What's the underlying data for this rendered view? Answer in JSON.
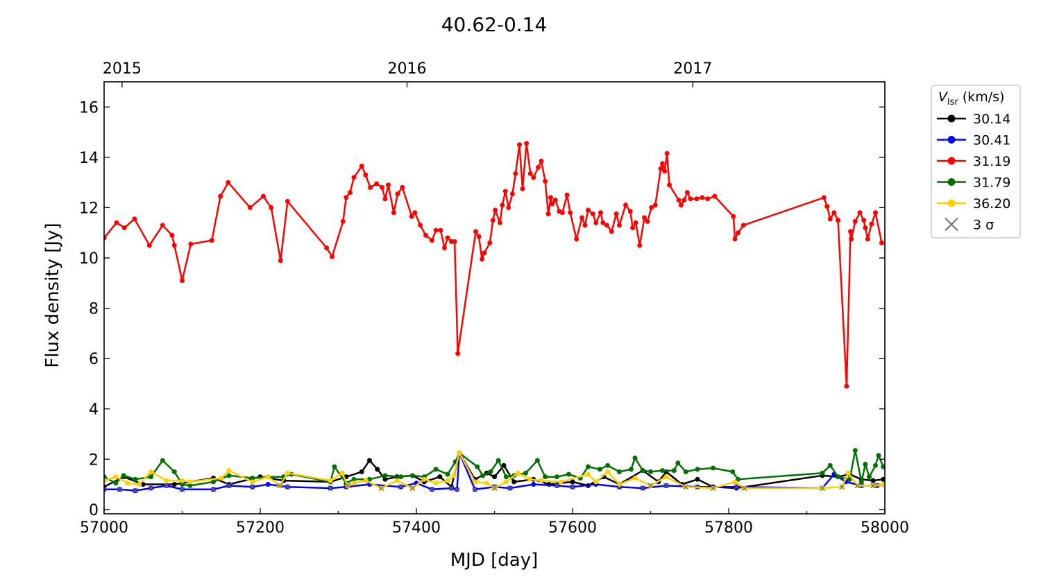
{
  "chart_data": {
    "type": "line",
    "title": "40.62-0.14",
    "xlabel": "MJD [day]",
    "ylabel": "Flux density [Jy]",
    "xlim": [
      57000,
      58000
    ],
    "ylim": [
      -0.17,
      17.0
    ],
    "xticks": [
      57000,
      57200,
      57400,
      57600,
      57800,
      58000
    ],
    "yticks": [
      0,
      2,
      4,
      6,
      8,
      10,
      12,
      14,
      16
    ],
    "top_axis": {
      "ticks": [
        {
          "label": "2015",
          "mjd": 57023
        },
        {
          "label": "2016",
          "mjd": 57388
        },
        {
          "label": "2017",
          "mjd": 57754
        }
      ]
    },
    "grid": false,
    "legend": {
      "placement": "outside-right",
      "title_main": "V",
      "title_sub": "lsr",
      "title_unit": " (km/s)",
      "sigma_label": "3 σ"
    },
    "sigma_color": "#707070",
    "series": [
      {
        "name": "30.14",
        "color": "#000000",
        "x": [
          57000,
          57025,
          57050,
          57090,
          57140,
          57160,
          57200,
          57230,
          57290,
          57310,
          57330,
          57340,
          57350,
          57360,
          57375,
          57395,
          57410,
          57430,
          57445,
          57455,
          57475,
          57490,
          57500,
          57512,
          57525,
          57550,
          57570,
          57600,
          57620,
          57640,
          57660,
          57690,
          57710,
          57720,
          57740,
          57760,
          57780,
          57810,
          57920,
          57940,
          57955,
          57970,
          57985,
          57998
        ],
        "y": [
          0.9,
          1.3,
          1.0,
          1.0,
          1.25,
          1.0,
          1.3,
          1.15,
          1.1,
          1.3,
          1.5,
          1.95,
          1.6,
          1.2,
          1.3,
          1.35,
          1.1,
          1.3,
          0.9,
          2.25,
          1.2,
          1.45,
          1.3,
          1.75,
          1.1,
          1.2,
          1.0,
          1.1,
          0.95,
          1.3,
          1.0,
          1.55,
          1.1,
          1.5,
          1.0,
          1.2,
          0.9,
          0.85,
          1.35,
          1.3,
          1.4,
          1.2,
          1.15,
          1.2
        ]
      },
      {
        "name": "30.41",
        "color": "#0000ff",
        "x": [
          57000,
          57020,
          57040,
          57060,
          57080,
          57100,
          57140,
          57160,
          57190,
          57210,
          57235,
          57290,
          57310,
          57340,
          57380,
          57400,
          57420,
          57445,
          57452,
          57455,
          57475,
          57500,
          57520,
          57550,
          57580,
          57600,
          57630,
          57660,
          57690,
          57720,
          57760,
          57810,
          57920,
          57935,
          57950,
          57970,
          57990,
          57998
        ],
        "y": [
          0.8,
          0.8,
          0.75,
          0.85,
          0.95,
          0.8,
          0.8,
          0.95,
          0.9,
          1.0,
          0.9,
          0.85,
          0.9,
          1.0,
          0.9,
          1.05,
          0.8,
          0.85,
          0.8,
          2.25,
          0.8,
          0.9,
          0.85,
          1.0,
          0.95,
          0.9,
          1.0,
          0.9,
          0.85,
          0.95,
          0.9,
          0.9,
          0.85,
          1.4,
          1.1,
          0.95,
          0.95,
          1.0
        ]
      },
      {
        "name": "31.19",
        "color": "#ff0000",
        "x": [
          57000,
          57016,
          57026,
          57039,
          57058,
          57075,
          57087,
          57090,
          57100,
          57111,
          57138,
          57149,
          57159,
          57187,
          57204,
          57214,
          57226,
          57235,
          57285,
          57292,
          57306,
          57310,
          57315,
          57320,
          57330,
          57335,
          57341,
          57349,
          57356,
          57360,
          57364,
          57371,
          57376,
          57382,
          57394,
          57398,
          57405,
          57412,
          57420,
          57425,
          57431,
          57436,
          57440,
          57445,
          57449,
          57453,
          57476,
          57480,
          57484,
          57487,
          57494,
          57498,
          57501,
          57507,
          57510,
          57514,
          57518,
          57523,
          57527,
          57532,
          57536,
          57541,
          57546,
          57550,
          57556,
          57560,
          57565,
          57569,
          57572,
          57574,
          57578,
          57583,
          57587,
          57593,
          57597,
          57605,
          57612,
          57616,
          57620,
          57626,
          57630,
          57636,
          57639,
          57644,
          57650,
          57656,
          57660,
          57668,
          57674,
          57677,
          57681,
          57686,
          57692,
          57696,
          57701,
          57706,
          57713,
          57715,
          57718,
          57721,
          57724,
          57736,
          57739,
          57743,
          57747,
          57751,
          57759,
          57766,
          57773,
          57782,
          57806,
          57808,
          57812,
          57819,
          57922,
          57926,
          57930,
          57935,
          57940,
          57951,
          57956,
          57957,
          57962,
          57968,
          57973,
          57975,
          57978,
          57983,
          57988,
          57996
        ],
        "y": [
          10.8,
          11.4,
          11.2,
          11.55,
          10.5,
          11.3,
          10.9,
          10.5,
          9.1,
          10.55,
          10.7,
          12.45,
          13.0,
          12.0,
          12.45,
          12.0,
          9.9,
          12.25,
          10.4,
          10.05,
          11.45,
          12.4,
          12.6,
          13.2,
          13.65,
          13.3,
          12.8,
          12.95,
          12.8,
          12.35,
          12.9,
          11.8,
          12.55,
          12.8,
          11.65,
          11.8,
          11.3,
          10.9,
          10.7,
          11.1,
          11.1,
          10.4,
          10.8,
          10.65,
          10.65,
          6.2,
          11.05,
          10.85,
          9.95,
          10.2,
          10.6,
          11.5,
          11.9,
          11.4,
          12.1,
          12.65,
          12.0,
          12.55,
          13.35,
          14.5,
          12.75,
          14.55,
          13.35,
          13.2,
          13.6,
          13.85,
          13.05,
          11.75,
          12.4,
          12.15,
          12.3,
          11.85,
          11.8,
          12.5,
          11.8,
          10.75,
          11.6,
          11.3,
          11.9,
          11.75,
          11.4,
          11.8,
          11.4,
          11.3,
          11.05,
          11.75,
          11.3,
          12.1,
          11.85,
          11.2,
          11.4,
          10.5,
          11.6,
          11.45,
          12.0,
          12.1,
          13.55,
          13.75,
          13.45,
          14.15,
          12.9,
          12.3,
          12.1,
          12.3,
          12.6,
          12.35,
          12.35,
          12.4,
          12.35,
          12.45,
          11.65,
          10.75,
          11.0,
          11.3,
          12.4,
          12.05,
          11.55,
          11.8,
          11.5,
          4.9,
          11.05,
          10.75,
          11.45,
          11.8,
          11.5,
          11.2,
          10.75,
          11.35,
          11.8,
          10.6
        ]
      },
      {
        "name": "31.79",
        "color": "#007000",
        "x": [
          57000,
          57015,
          57025,
          57040,
          57060,
          57075,
          57090,
          57100,
          57110,
          57140,
          57160,
          57190,
          57210,
          57230,
          57240,
          57290,
          57295,
          57310,
          57320,
          57340,
          57360,
          57380,
          57395,
          57410,
          57425,
          57440,
          57450,
          57455,
          57478,
          57485,
          57495,
          57505,
          57515,
          57525,
          57540,
          57555,
          57565,
          57580,
          57595,
          57610,
          57620,
          57635,
          57645,
          57660,
          57675,
          57680,
          57690,
          57700,
          57715,
          57730,
          57735,
          57745,
          57760,
          57780,
          57805,
          57812,
          57920,
          57930,
          57940,
          57955,
          57962,
          57970,
          57975,
          57980,
          57988,
          57992,
          57998
        ],
        "y": [
          1.3,
          1.05,
          1.35,
          1.2,
          1.3,
          1.95,
          1.5,
          1.0,
          0.95,
          1.1,
          1.35,
          1.25,
          1.3,
          1.3,
          1.4,
          1.1,
          1.7,
          1.05,
          1.2,
          1.2,
          1.35,
          1.3,
          1.35,
          1.3,
          1.6,
          1.4,
          1.9,
          2.25,
          1.7,
          1.35,
          1.5,
          1.95,
          1.3,
          1.35,
          1.45,
          1.95,
          1.3,
          1.3,
          1.4,
          1.25,
          1.7,
          1.6,
          1.75,
          1.5,
          1.6,
          2.05,
          1.55,
          1.5,
          1.55,
          1.55,
          1.85,
          1.5,
          1.6,
          1.65,
          1.5,
          1.2,
          1.45,
          1.75,
          1.3,
          1.2,
          2.35,
          1.1,
          1.8,
          1.3,
          1.75,
          2.15,
          1.7
        ]
      },
      {
        "name": "36.20",
        "color": "#ffd000",
        "x": [
          57000,
          57015,
          57030,
          57045,
          57060,
          57080,
          57100,
          57110,
          57150,
          57160,
          57190,
          57210,
          57225,
          57235,
          57290,
          57305,
          57312,
          57320,
          57335,
          57355,
          57375,
          57395,
          57410,
          57425,
          57440,
          57448,
          57455,
          57475,
          57490,
          57500,
          57515,
          57530,
          57545,
          57560,
          57585,
          57620,
          57630,
          57645,
          57660,
          57680,
          57700,
          57720,
          57745,
          57780,
          57808,
          57820,
          57920,
          57945,
          57953,
          57965,
          57985,
          57998
        ],
        "y": [
          1.15,
          1.3,
          1.05,
          1.0,
          1.5,
          1.15,
          1.15,
          1.1,
          1.25,
          1.55,
          1.1,
          1.3,
          0.95,
          1.45,
          1.15,
          1.45,
          0.95,
          1.05,
          1.15,
          0.85,
          1.15,
          0.85,
          1.2,
          1.05,
          1.15,
          1.35,
          2.25,
          1.1,
          1.05,
          0.85,
          1.1,
          1.45,
          1.2,
          1.15,
          1.1,
          1.4,
          1.1,
          1.5,
          1.0,
          1.25,
          0.95,
          1.3,
          0.9,
          0.85,
          1.1,
          0.85,
          0.85,
          0.9,
          1.45,
          0.95,
          0.95,
          1.0
        ]
      }
    ]
  }
}
